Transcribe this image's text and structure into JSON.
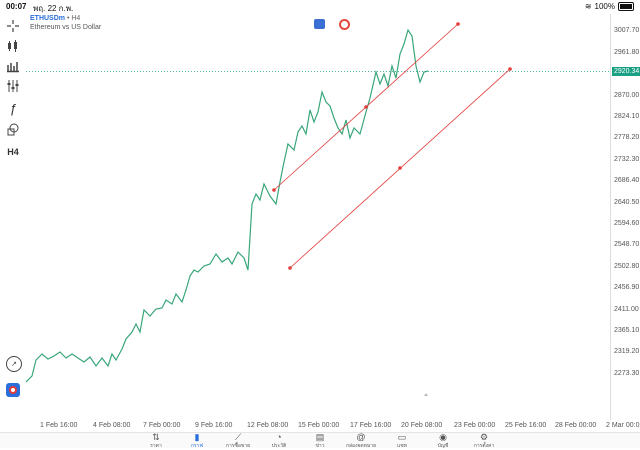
{
  "status": {
    "time": "00:07",
    "date": "พฤ. 22 ก.พ.",
    "battery": "100%"
  },
  "symbol": {
    "name": "ETHUSDm",
    "timeframe": "• H4",
    "description": "Ethereum vs US Dollar"
  },
  "toolbar": [
    {
      "name": "crosshair-icon",
      "glyph": "+"
    },
    {
      "name": "candles-icon",
      "glyph": "candles"
    },
    {
      "name": "bars-icon",
      "glyph": "bars"
    },
    {
      "name": "indicators-icon",
      "glyph": "sliders"
    },
    {
      "name": "function-icon",
      "glyph": "ƒ"
    },
    {
      "name": "shapes-icon",
      "glyph": "shapes"
    },
    {
      "name": "timeframe-button",
      "glyph": "H4"
    }
  ],
  "yaxis_labels": [
    "3007.70",
    "2961.80",
    "2870.00",
    "2824.10",
    "2778.20",
    "2732.30",
    "2686.40",
    "2640.50",
    "2594.60",
    "2548.70",
    "2502.80",
    "2456.90",
    "2411.00",
    "2365.10",
    "2319.20",
    "2273.30"
  ],
  "current_price": "2920.34",
  "xaxis_labels": [
    "1 Feb 16:00",
    "4 Feb 08:00",
    "7 Feb 00:00",
    "9 Feb 16:00",
    "12 Feb 08:00",
    "15 Feb 00:00",
    "17 Feb 16:00",
    "20 Feb 08:00",
    "23 Feb 00:00",
    "25 Feb 16:00",
    "28 Feb 00:00",
    "2 Mar 00:0"
  ],
  "tabs": [
    {
      "label": "ราคา",
      "icon": "quotes-icon",
      "glyph": "⇅",
      "active": false
    },
    {
      "label": "กราฟ",
      "icon": "chart-icon",
      "glyph": "▮",
      "active": true
    },
    {
      "label": "การซื้อขาย",
      "icon": "trade-icon",
      "glyph": "⟋",
      "active": false
    },
    {
      "label": "ประวัติ",
      "icon": "history-icon",
      "glyph": "◔",
      "active": false
    },
    {
      "label": "ข่าว",
      "icon": "news-icon",
      "glyph": "▤",
      "active": false
    },
    {
      "label": "กล่องจดหมาย",
      "icon": "mailbox-icon",
      "glyph": "@",
      "active": false
    },
    {
      "label": "แชท",
      "icon": "chat-icon",
      "glyph": "▭",
      "active": false
    },
    {
      "label": "บัญชี",
      "icon": "account-icon",
      "glyph": "◉",
      "active": false
    },
    {
      "label": "การตั้งค่า",
      "icon": "settings-icon",
      "glyph": "⚙",
      "active": false
    }
  ],
  "colors": {
    "line": "#39a67a",
    "channel": "#e33b3b",
    "accent": "#2a6edb"
  }
}
